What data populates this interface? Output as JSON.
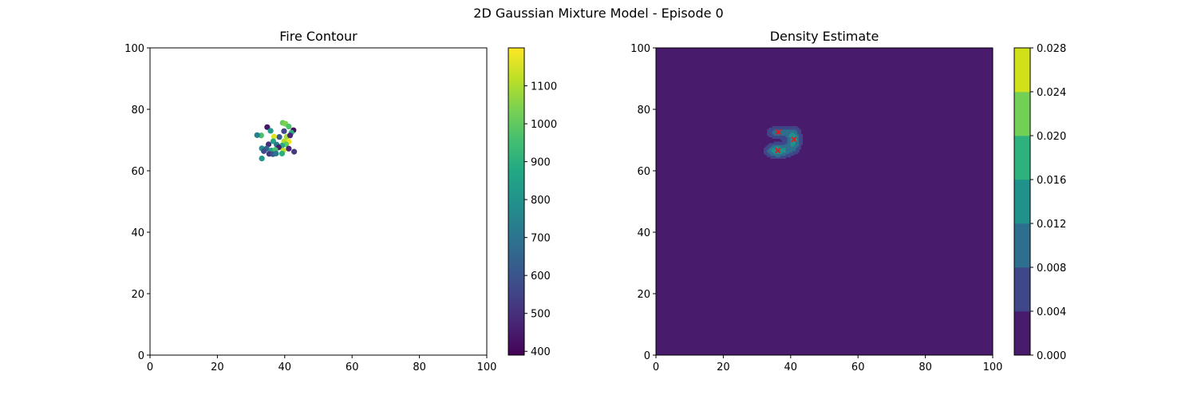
{
  "figure": {
    "suptitle": "2D Gaussian Mixture Model - Episode 0"
  },
  "chart_data": [
    {
      "type": "scatter",
      "title": "Fire Contour",
      "xlabel": "",
      "ylabel": "",
      "xlim": [
        0,
        100
      ],
      "ylim": [
        0,
        100
      ],
      "xticks": [
        "0",
        "20",
        "40",
        "60",
        "80",
        "100"
      ],
      "yticks": [
        "0",
        "20",
        "40",
        "60",
        "80",
        "100"
      ],
      "grid": false,
      "colormap": "viridis",
      "colorbar": {
        "min": 390,
        "max": 1200,
        "ticks": [
          "400",
          "500",
          "600",
          "700",
          "800",
          "900",
          "1000",
          "1100"
        ]
      },
      "points": [
        {
          "x": 33.0,
          "y": 71.5,
          "c": 960
        },
        {
          "x": 31.8,
          "y": 71.6,
          "c": 740
        },
        {
          "x": 34.8,
          "y": 74.2,
          "c": 440
        },
        {
          "x": 35.8,
          "y": 73.0,
          "c": 830
        },
        {
          "x": 39.4,
          "y": 75.6,
          "c": 1010
        },
        {
          "x": 40.2,
          "y": 75.3,
          "c": 1040
        },
        {
          "x": 41.2,
          "y": 74.4,
          "c": 970
        },
        {
          "x": 42.6,
          "y": 73.2,
          "c": 420
        },
        {
          "x": 42.0,
          "y": 72.4,
          "c": 900
        },
        {
          "x": 39.8,
          "y": 72.9,
          "c": 560
        },
        {
          "x": 38.4,
          "y": 71.0,
          "c": 620
        },
        {
          "x": 36.8,
          "y": 71.1,
          "c": 1160
        },
        {
          "x": 40.6,
          "y": 71.1,
          "c": 1090
        },
        {
          "x": 39.8,
          "y": 69.6,
          "c": 1110
        },
        {
          "x": 41.2,
          "y": 69.5,
          "c": 1180
        },
        {
          "x": 41.6,
          "y": 71.5,
          "c": 480
        },
        {
          "x": 36.6,
          "y": 69.6,
          "c": 860
        },
        {
          "x": 35.2,
          "y": 68.6,
          "c": 500
        },
        {
          "x": 37.6,
          "y": 68.5,
          "c": 710
        },
        {
          "x": 40.4,
          "y": 68.6,
          "c": 1000
        },
        {
          "x": 39.2,
          "y": 68.2,
          "c": 880
        },
        {
          "x": 38.2,
          "y": 67.6,
          "c": 450
        },
        {
          "x": 33.2,
          "y": 67.3,
          "c": 780
        },
        {
          "x": 34.6,
          "y": 67.2,
          "c": 640
        },
        {
          "x": 33.8,
          "y": 66.4,
          "c": 580
        },
        {
          "x": 36.0,
          "y": 66.6,
          "c": 850
        },
        {
          "x": 37.2,
          "y": 66.8,
          "c": 960
        },
        {
          "x": 39.6,
          "y": 66.6,
          "c": 1120
        },
        {
          "x": 41.2,
          "y": 67.2,
          "c": 470
        },
        {
          "x": 35.4,
          "y": 65.5,
          "c": 520
        },
        {
          "x": 36.5,
          "y": 65.4,
          "c": 600
        },
        {
          "x": 39.2,
          "y": 65.6,
          "c": 900
        },
        {
          "x": 42.8,
          "y": 66.2,
          "c": 530
        },
        {
          "x": 33.2,
          "y": 64.0,
          "c": 820
        },
        {
          "x": 37.4,
          "y": 65.6,
          "c": 700
        }
      ]
    },
    {
      "type": "heatmap",
      "title": "Density Estimate",
      "xlabel": "",
      "ylabel": "",
      "xlim": [
        0,
        100
      ],
      "ylim": [
        0,
        100
      ],
      "xticks": [
        "0",
        "20",
        "40",
        "60",
        "80",
        "100"
      ],
      "yticks": [
        "0",
        "20",
        "40",
        "60",
        "80",
        "100"
      ],
      "grid": false,
      "colormap": "viridis",
      "levels": [
        0.0,
        0.004,
        0.008,
        0.012,
        0.016,
        0.02,
        0.024,
        0.028
      ],
      "level_colors": [
        "#481b6d",
        "#3f4788",
        "#2e6e8e",
        "#21918c",
        "#2db27d",
        "#73d056",
        "#d0e11c"
      ],
      "colorbar": {
        "ticks": [
          "0.000",
          "0.004",
          "0.008",
          "0.012",
          "0.016",
          "0.020",
          "0.024",
          "0.028"
        ]
      },
      "components": [
        {
          "mean": [
            36.2,
            66.6
          ],
          "weight": 0.42,
          "sx": 2.6,
          "sy": 1.6
        },
        {
          "mean": [
            41.0,
            70.2
          ],
          "weight": 0.34,
          "sx": 1.5,
          "sy": 2.6
        },
        {
          "mean": [
            36.4,
            72.6
          ],
          "weight": 0.24,
          "sx": 2.6,
          "sy": 1.4
        }
      ],
      "centers": [
        {
          "x": 36.4,
          "y": 72.6
        },
        {
          "x": 36.2,
          "y": 66.6
        },
        {
          "x": 41.0,
          "y": 70.2
        }
      ],
      "center_marker_color": "#e31a1c"
    }
  ]
}
